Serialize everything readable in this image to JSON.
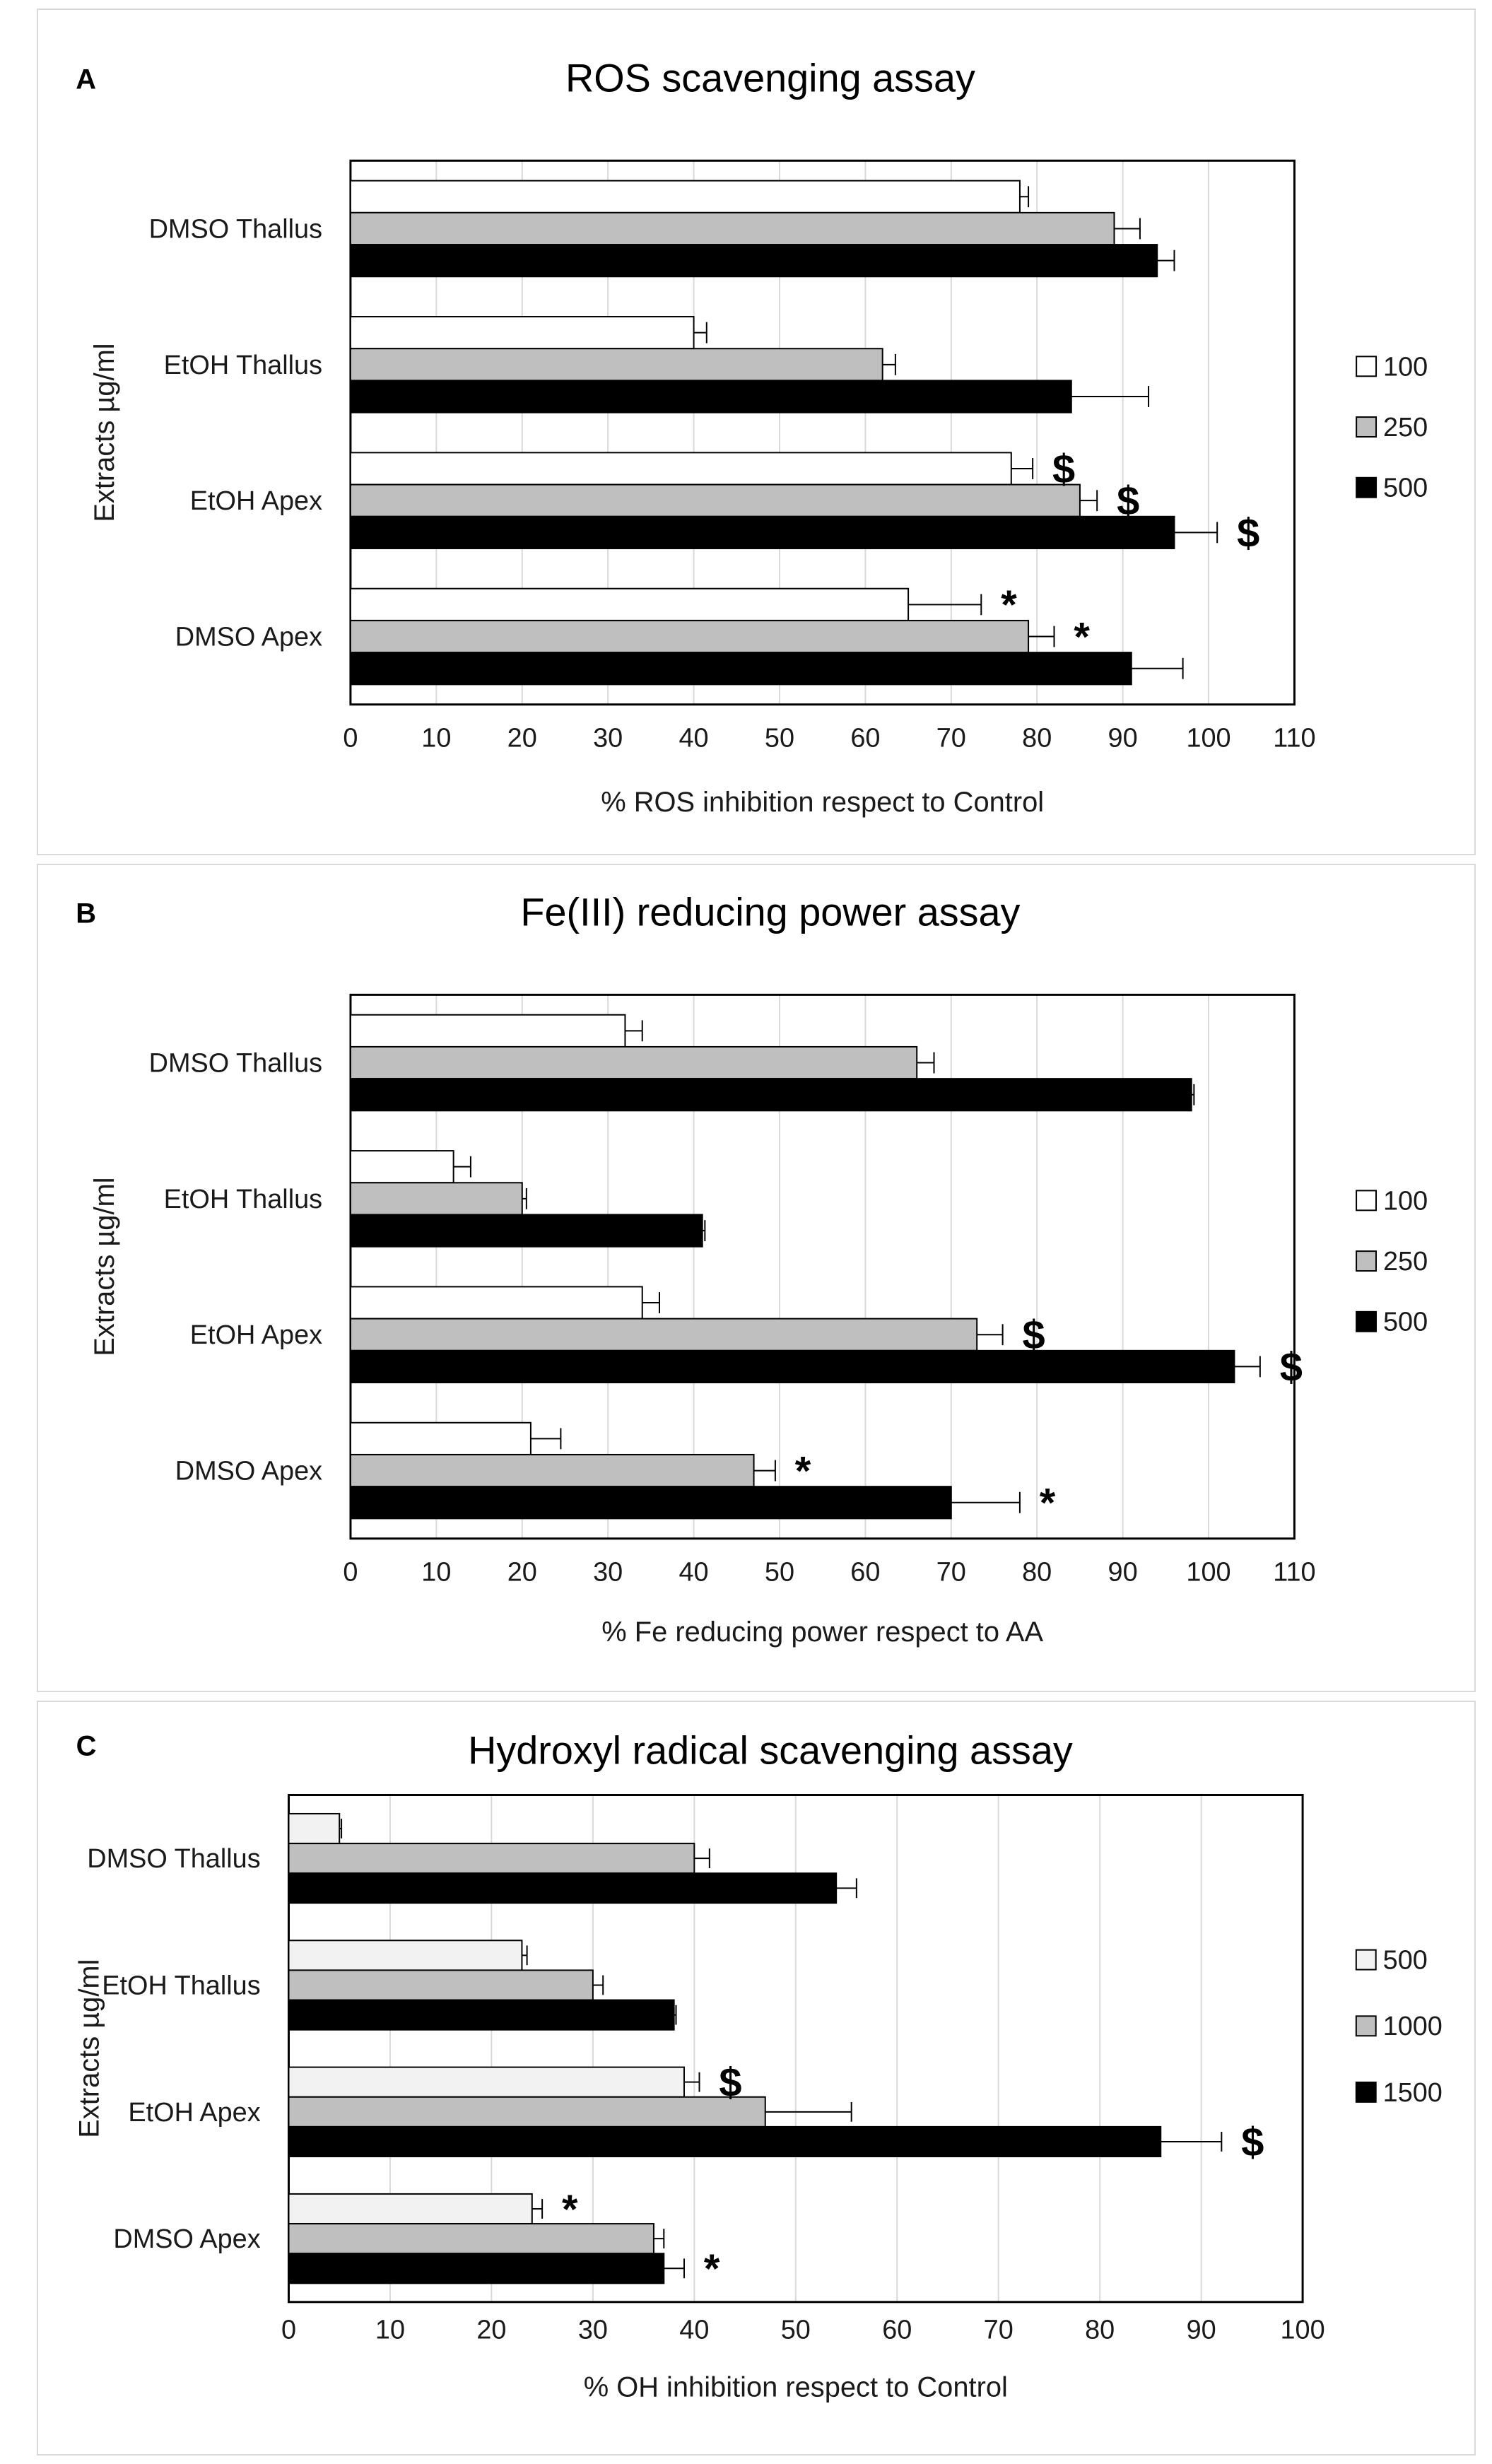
{
  "chart_data": [
    {
      "type": "bar",
      "orientation": "horizontal",
      "panel_letter": "A",
      "title": "ROS scavenging assay",
      "xlabel": "% ROS inhibition respect to Control",
      "ylabel": "Extracts µg/ml",
      "xlim": [
        0,
        110
      ],
      "xticks": [
        "0",
        "10",
        "20",
        "30",
        "40",
        "50",
        "60",
        "70",
        "80",
        "90",
        "100",
        "110"
      ],
      "categories": [
        "DMSO Thallus",
        "EtOH Thallus",
        "EtOH Apex",
        "DMSO Apex"
      ],
      "series": [
        {
          "name": "100",
          "color": "#ffffff",
          "values": [
            78,
            40,
            77,
            65
          ],
          "errors": [
            1,
            1.5,
            2.5,
            8.5
          ]
        },
        {
          "name": "250",
          "color": "#bfbfbf",
          "values": [
            89,
            62,
            85,
            79
          ],
          "errors": [
            3,
            1.5,
            2,
            3
          ]
        },
        {
          "name": "500",
          "color": "#000000",
          "values": [
            94,
            84,
            96,
            91
          ],
          "errors": [
            2,
            9,
            5,
            6
          ]
        }
      ],
      "annotations": [
        {
          "text": "$",
          "category": 2,
          "series": 0
        },
        {
          "text": "$",
          "category": 2,
          "series": 1
        },
        {
          "text": "$",
          "category": 2,
          "series": 2
        },
        {
          "text": "*",
          "category": 3,
          "series": 0
        },
        {
          "text": "*",
          "category": 3,
          "series": 1
        }
      ],
      "legend_position": "right",
      "grid": true
    },
    {
      "type": "bar",
      "orientation": "horizontal",
      "panel_letter": "B",
      "title": "Fe(III) reducing power assay",
      "xlabel": "% Fe reducing power respect to AA",
      "ylabel": "Extracts µg/ml",
      "xlim": [
        0,
        110
      ],
      "xticks": [
        "0",
        "10",
        "20",
        "30",
        "40",
        "50",
        "60",
        "70",
        "80",
        "90",
        "100",
        "110"
      ],
      "categories": [
        "DMSO Thallus",
        "EtOH Thallus",
        "EtOH Apex",
        "DMSO Apex"
      ],
      "series": [
        {
          "name": "100",
          "color": "#ffffff",
          "values": [
            32,
            12,
            34,
            21
          ],
          "errors": [
            2,
            2,
            2,
            3.5
          ]
        },
        {
          "name": "250",
          "color": "#bfbfbf",
          "values": [
            66,
            20,
            73,
            47
          ],
          "errors": [
            2,
            0.5,
            3,
            2.5
          ]
        },
        {
          "name": "500",
          "color": "#000000",
          "values": [
            98,
            41,
            103,
            70
          ],
          "errors": [
            0.3,
            0.3,
            3,
            8
          ]
        }
      ],
      "annotations": [
        {
          "text": "$",
          "category": 2,
          "series": 1
        },
        {
          "text": "$",
          "category": 2,
          "series": 2
        },
        {
          "text": "*",
          "category": 3,
          "series": 1
        },
        {
          "text": "*",
          "category": 3,
          "series": 2
        }
      ],
      "legend_position": "right",
      "grid": true
    },
    {
      "type": "bar",
      "orientation": "horizontal",
      "panel_letter": "C",
      "title": "Hydroxyl radical scavenging assay",
      "xlabel": "% OH inhibition respect to Control",
      "ylabel": "Extracts µg/ml",
      "xlim": [
        0,
        100
      ],
      "xticks": [
        "0",
        "10",
        "20",
        "30",
        "40",
        "50",
        "60",
        "70",
        "80",
        "90",
        "100"
      ],
      "categories": [
        "DMSO Thallus",
        "EtOH Thallus",
        "EtOH Apex",
        "DMSO Apex"
      ],
      "series": [
        {
          "name": "500",
          "color": "#f2f2f2",
          "values": [
            5,
            23,
            39,
            24
          ],
          "errors": [
            0.2,
            0.5,
            1.5,
            1
          ]
        },
        {
          "name": "1000",
          "color": "#bfbfbf",
          "values": [
            40,
            30,
            47,
            36
          ],
          "errors": [
            1.5,
            1,
            8.5,
            1
          ]
        },
        {
          "name": "1500",
          "color": "#000000",
          "values": [
            54,
            38,
            86,
            37
          ],
          "errors": [
            2,
            0.2,
            6,
            2
          ]
        }
      ],
      "annotations": [
        {
          "text": "$",
          "category": 2,
          "series": 0
        },
        {
          "text": "$",
          "category": 2,
          "series": 2
        },
        {
          "text": "*",
          "category": 3,
          "series": 0
        },
        {
          "text": "*",
          "category": 3,
          "series": 2
        }
      ],
      "legend_position": "right",
      "grid": true
    }
  ]
}
